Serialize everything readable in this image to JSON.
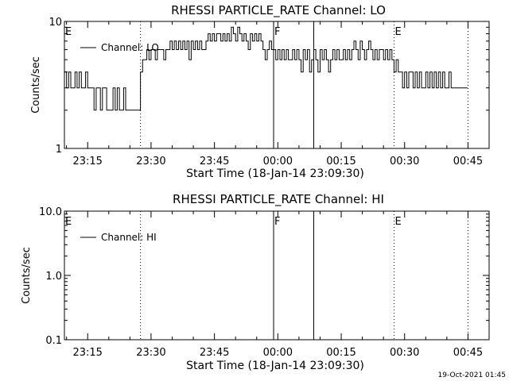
{
  "footer": {
    "timestamp": "19-Oct-2021 01:45"
  },
  "chart_data": [
    {
      "type": "line",
      "title": "RHESSI PARTICLE_RATE Channel: LO",
      "xlabel": "Start Time (18-Jan-14 23:09:30)",
      "ylabel": "Counts/sec",
      "yscale": "log",
      "ylim": [
        1,
        10
      ],
      "ytick_labels": [
        "1",
        "10"
      ],
      "yticks": [
        1,
        10
      ],
      "xlim": [
        "23:09:30",
        "00:50:00"
      ],
      "xtick_labels": [
        "23:15",
        "23:30",
        "23:45",
        "00:00",
        "00:15",
        "00:30",
        "00:45"
      ],
      "legend": {
        "label": "Channel: LO",
        "placement": "top-left"
      },
      "markers": [
        {
          "time": "23:09:30",
          "label": "E",
          "style": "dotted"
        },
        {
          "time": "23:27:30",
          "label": "",
          "style": "dotted"
        },
        {
          "time": "23:59:00",
          "label": "F",
          "style": "solid"
        },
        {
          "time": "00:08:30",
          "label": "",
          "style": "solid"
        },
        {
          "time": "00:27:30",
          "label": "E",
          "style": "dotted"
        },
        {
          "time": "00:45:00",
          "label": "",
          "style": "dotted"
        }
      ],
      "series": [
        {
          "name": "Channel: LO",
          "points": [
            [
              "23:09:30",
              4
            ],
            [
              "23:10:00",
              3
            ],
            [
              "23:10:30",
              4
            ],
            [
              "23:11:00",
              3
            ],
            [
              "23:11:30",
              3
            ],
            [
              "23:12:00",
              4
            ],
            [
              "23:12:30",
              3
            ],
            [
              "23:13:00",
              4
            ],
            [
              "23:13:30",
              3
            ],
            [
              "23:14:00",
              3
            ],
            [
              "23:14:30",
              4
            ],
            [
              "23:15:00",
              3
            ],
            [
              "23:15:30",
              3
            ],
            [
              "23:16:00",
              3
            ],
            [
              "23:16:30",
              2
            ],
            [
              "23:17:00",
              3
            ],
            [
              "23:17:30",
              3
            ],
            [
              "23:18:00",
              2
            ],
            [
              "23:18:30",
              3
            ],
            [
              "23:19:00",
              3
            ],
            [
              "23:19:30",
              2
            ],
            [
              "23:20:00",
              2
            ],
            [
              "23:20:30",
              2
            ],
            [
              "23:21:00",
              3
            ],
            [
              "23:21:30",
              2
            ],
            [
              "23:22:00",
              3
            ],
            [
              "23:22:30",
              2
            ],
            [
              "23:23:00",
              2
            ],
            [
              "23:23:30",
              3
            ],
            [
              "23:24:00",
              2
            ],
            [
              "23:24:30",
              2
            ],
            [
              "23:25:00",
              2
            ],
            [
              "23:25:30",
              2
            ],
            [
              "23:26:00",
              2
            ],
            [
              "23:26:30",
              2
            ],
            [
              "23:27:00",
              2
            ],
            [
              "23:27:30",
              4
            ],
            [
              "23:28:00",
              5
            ],
            [
              "23:28:30",
              5
            ],
            [
              "23:29:00",
              6
            ],
            [
              "23:29:30",
              5
            ],
            [
              "23:30:00",
              6
            ],
            [
              "23:30:30",
              6
            ],
            [
              "23:31:00",
              5
            ],
            [
              "23:31:30",
              6
            ],
            [
              "23:32:00",
              6
            ],
            [
              "23:32:30",
              6
            ],
            [
              "23:33:00",
              5
            ],
            [
              "23:33:30",
              6
            ],
            [
              "23:34:00",
              6
            ],
            [
              "23:34:30",
              7
            ],
            [
              "23:35:00",
              6
            ],
            [
              "23:35:30",
              7
            ],
            [
              "23:36:00",
              6
            ],
            [
              "23:36:30",
              7
            ],
            [
              "23:37:00",
              6
            ],
            [
              "23:37:30",
              7
            ],
            [
              "23:38:00",
              6
            ],
            [
              "23:38:30",
              7
            ],
            [
              "23:39:00",
              5
            ],
            [
              "23:39:30",
              7
            ],
            [
              "23:40:00",
              6
            ],
            [
              "23:40:30",
              7
            ],
            [
              "23:41:00",
              6
            ],
            [
              "23:41:30",
              7
            ],
            [
              "23:42:00",
              6
            ],
            [
              "23:42:30",
              6
            ],
            [
              "23:43:00",
              7
            ],
            [
              "23:43:30",
              8
            ],
            [
              "23:44:00",
              7
            ],
            [
              "23:44:30",
              8
            ],
            [
              "23:45:00",
              7
            ],
            [
              "23:45:30",
              8
            ],
            [
              "23:46:00",
              8
            ],
            [
              "23:46:30",
              7
            ],
            [
              "23:47:00",
              8
            ],
            [
              "23:47:30",
              7
            ],
            [
              "23:48:00",
              8
            ],
            [
              "23:48:30",
              7
            ],
            [
              "23:49:00",
              9
            ],
            [
              "23:49:30",
              8
            ],
            [
              "23:50:00",
              7
            ],
            [
              "23:50:30",
              9
            ],
            [
              "23:51:00",
              8
            ],
            [
              "23:51:30",
              7
            ],
            [
              "23:52:00",
              8
            ],
            [
              "23:52:30",
              7
            ],
            [
              "23:53:00",
              6
            ],
            [
              "23:53:30",
              8
            ],
            [
              "23:54:00",
              7
            ],
            [
              "23:54:30",
              8
            ],
            [
              "23:55:00",
              7
            ],
            [
              "23:55:30",
              8
            ],
            [
              "23:56:00",
              7
            ],
            [
              "23:56:30",
              6
            ],
            [
              "23:57:00",
              5
            ],
            [
              "23:57:30",
              6
            ],
            [
              "23:58:00",
              7
            ],
            [
              "23:58:30",
              6
            ],
            [
              "23:59:00",
              6
            ],
            [
              "23:59:30",
              5
            ],
            [
              "00:00:00",
              6
            ],
            [
              "00:00:30",
              5
            ],
            [
              "00:01:00",
              6
            ],
            [
              "00:01:30",
              5
            ],
            [
              "00:02:00",
              6
            ],
            [
              "00:02:30",
              5
            ],
            [
              "00:03:00",
              5
            ],
            [
              "00:03:30",
              6
            ],
            [
              "00:04:00",
              5
            ],
            [
              "00:04:30",
              6
            ],
            [
              "00:05:00",
              5
            ],
            [
              "00:05:30",
              4
            ],
            [
              "00:06:00",
              6
            ],
            [
              "00:06:30",
              5
            ],
            [
              "00:07:00",
              6
            ],
            [
              "00:07:30",
              4
            ],
            [
              "00:08:00",
              5
            ],
            [
              "00:08:30",
              6
            ],
            [
              "00:09:00",
              5
            ],
            [
              "00:09:30",
              4
            ],
            [
              "00:10:00",
              6
            ],
            [
              "00:10:30",
              5
            ],
            [
              "00:11:00",
              6
            ],
            [
              "00:11:30",
              5
            ],
            [
              "00:12:00",
              4
            ],
            [
              "00:12:30",
              5
            ],
            [
              "00:13:00",
              6
            ],
            [
              "00:13:30",
              5
            ],
            [
              "00:14:00",
              6
            ],
            [
              "00:14:30",
              5
            ],
            [
              "00:15:00",
              5
            ],
            [
              "00:15:30",
              6
            ],
            [
              "00:16:00",
              5
            ],
            [
              "00:16:30",
              6
            ],
            [
              "00:17:00",
              5
            ],
            [
              "00:17:30",
              6
            ],
            [
              "00:18:00",
              7
            ],
            [
              "00:18:30",
              6
            ],
            [
              "00:19:00",
              5
            ],
            [
              "00:19:30",
              7
            ],
            [
              "00:20:00",
              6
            ],
            [
              "00:20:30",
              5
            ],
            [
              "00:21:00",
              6
            ],
            [
              "00:21:30",
              7
            ],
            [
              "00:22:00",
              6
            ],
            [
              "00:22:30",
              5
            ],
            [
              "00:23:00",
              6
            ],
            [
              "00:23:30",
              5
            ],
            [
              "00:24:00",
              6
            ],
            [
              "00:24:30",
              6
            ],
            [
              "00:25:00",
              5
            ],
            [
              "00:25:30",
              6
            ],
            [
              "00:26:00",
              5
            ],
            [
              "00:26:30",
              6
            ],
            [
              "00:27:00",
              5
            ],
            [
              "00:27:30",
              4
            ],
            [
              "00:28:00",
              5
            ],
            [
              "00:28:30",
              4
            ],
            [
              "00:29:00",
              4
            ],
            [
              "00:29:30",
              3
            ],
            [
              "00:30:00",
              4
            ],
            [
              "00:30:30",
              3
            ],
            [
              "00:31:00",
              4
            ],
            [
              "00:31:30",
              4
            ],
            [
              "00:32:00",
              3
            ],
            [
              "00:32:30",
              4
            ],
            [
              "00:33:00",
              3
            ],
            [
              "00:33:30",
              4
            ],
            [
              "00:34:00",
              3
            ],
            [
              "00:34:30",
              3
            ],
            [
              "00:35:00",
              4
            ],
            [
              "00:35:30",
              3
            ],
            [
              "00:36:00",
              4
            ],
            [
              "00:36:30",
              3
            ],
            [
              "00:37:00",
              4
            ],
            [
              "00:37:30",
              3
            ],
            [
              "00:38:00",
              4
            ],
            [
              "00:38:30",
              3
            ],
            [
              "00:39:00",
              4
            ],
            [
              "00:39:30",
              3
            ],
            [
              "00:40:00",
              3
            ],
            [
              "00:40:30",
              4
            ],
            [
              "00:41:00",
              3
            ],
            [
              "00:41:30",
              3
            ],
            [
              "00:42:00",
              3
            ],
            [
              "00:42:30",
              3
            ],
            [
              "00:43:00",
              3
            ],
            [
              "00:43:30",
              3
            ],
            [
              "00:44:00",
              3
            ],
            [
              "00:44:30",
              3
            ]
          ]
        }
      ]
    },
    {
      "type": "line",
      "title": "RHESSI PARTICLE_RATE Channel: HI",
      "xlabel": "Start Time (18-Jan-14 23:09:30)",
      "ylabel": "Counts/sec",
      "yscale": "log",
      "ylim": [
        0.1,
        10
      ],
      "ytick_labels": [
        "0.1",
        "1.0",
        "10.0"
      ],
      "yticks": [
        0.1,
        1,
        10
      ],
      "xlim": [
        "23:09:30",
        "00:50:00"
      ],
      "xtick_labels": [
        "23:15",
        "23:30",
        "23:45",
        "00:00",
        "00:15",
        "00:30",
        "00:45"
      ],
      "legend": {
        "label": "Channel: HI",
        "placement": "top-left"
      },
      "markers": [
        {
          "time": "23:09:30",
          "label": "E",
          "style": "dotted"
        },
        {
          "time": "23:27:30",
          "label": "",
          "style": "dotted"
        },
        {
          "time": "23:59:00",
          "label": "F",
          "style": "solid"
        },
        {
          "time": "00:08:30",
          "label": "",
          "style": "solid"
        },
        {
          "time": "00:27:30",
          "label": "E",
          "style": "dotted"
        },
        {
          "time": "00:45:00",
          "label": "",
          "style": "dotted"
        }
      ],
      "series": [
        {
          "name": "Channel: HI",
          "points": []
        }
      ]
    }
  ]
}
